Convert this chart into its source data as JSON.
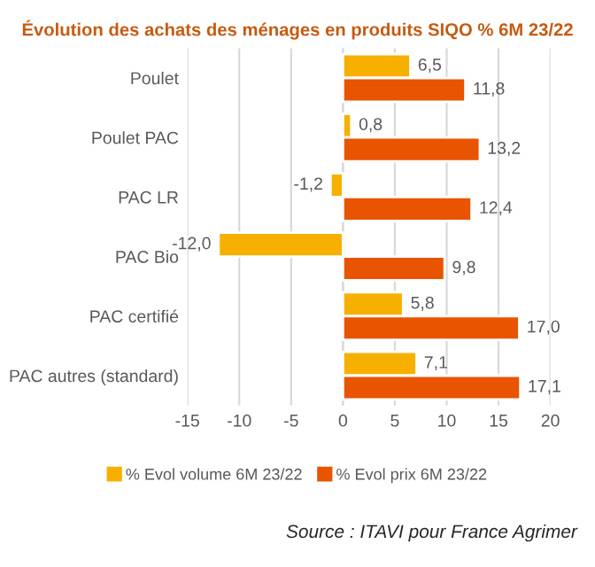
{
  "chart_data": {
    "type": "bar",
    "orientation": "horizontal",
    "title": "Évolution des achats des ménages en produits SIQO % 6M 23/22",
    "categories": [
      "Poulet",
      "Poulet PAC",
      "PAC LR",
      "PAC Bio",
      "PAC certifié",
      "PAC autres (standard)"
    ],
    "series": [
      {
        "name": "% Evol volume 6M 23/22",
        "color": "#f7b000",
        "values": [
          6.5,
          0.8,
          -1.2,
          -12.0,
          5.8,
          7.1
        ],
        "value_labels": [
          "6,5",
          "0,8",
          "-1,2",
          "-12,0",
          "5,8",
          "7,1"
        ]
      },
      {
        "name": "% Evol prix 6M 23/22",
        "color": "#e85400",
        "values": [
          11.8,
          13.2,
          12.4,
          9.8,
          17.0,
          17.1
        ],
        "value_labels": [
          "11,8",
          "13,2",
          "12,4",
          "9,8",
          "17,0",
          "17,1"
        ]
      }
    ],
    "xlim": [
      -15,
      20
    ],
    "xticks": [
      -15,
      -10,
      -5,
      0,
      5,
      10,
      15,
      20
    ],
    "grid": "x",
    "legend": "bottom",
    "annotations": [
      "Source : ITAVI pour France Agrimer"
    ]
  }
}
